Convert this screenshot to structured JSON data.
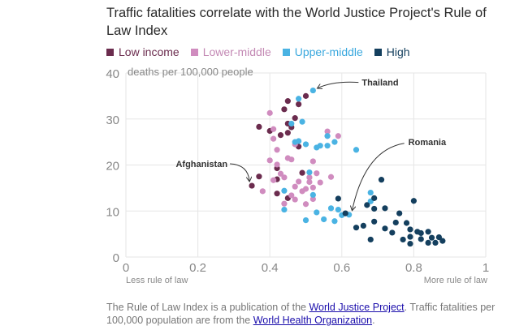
{
  "title": "Traffic fatalities correlate with the World Justice Project's Rule of Law Index",
  "legend": [
    {
      "label": "Low income",
      "color": "#6b2c4e",
      "text_color": "#6b2c4e"
    },
    {
      "label": "Lower-middle",
      "color": "#d08cbf",
      "text_color": "#c389b4"
    },
    {
      "label": "Upper-middle",
      "color": "#4ab3e3",
      "text_color": "#3aa8de"
    },
    {
      "label": "High",
      "color": "#143f5e",
      "text_color": "#143f5e"
    }
  ],
  "footer": {
    "pre": "The Rule of Law Index is a publication of the ",
    "link1": "World Justice Project",
    "mid": ". Traffic fatalities per 100,000 population are from the ",
    "link2": "World Health Organization",
    "post": "."
  },
  "chart_data": {
    "type": "scatter",
    "title": "Traffic fatalities correlate with the World Justice Project's Rule of Law Index",
    "ylabel": "deaths per 100,000 people",
    "xlabel_left": "Less rule of law",
    "xlabel_right": "More rule of law",
    "xlim": [
      0,
      1
    ],
    "ylim": [
      0,
      40
    ],
    "xticks": [
      "0",
      "0.2",
      "0.4",
      "0.6",
      "0.8",
      "1"
    ],
    "yticks": [
      "0",
      "10",
      "20",
      "30",
      "40"
    ],
    "annotations": [
      {
        "label": "Afghanistan",
        "x": 0.35,
        "y": 15.5
      },
      {
        "label": "Thailand",
        "x": 0.52,
        "y": 36.2
      },
      {
        "label": "Romania",
        "x": 0.62,
        "y": 9.2
      }
    ],
    "series": [
      {
        "name": "Low income",
        "color": "#6b2c4e",
        "points": [
          [
            0.35,
            15.5
          ],
          [
            0.37,
            17.5
          ],
          [
            0.37,
            28.3
          ],
          [
            0.4,
            27.4
          ],
          [
            0.42,
            13.8
          ],
          [
            0.42,
            16.9
          ],
          [
            0.42,
            19.3
          ],
          [
            0.43,
            26.5
          ],
          [
            0.44,
            32.1
          ],
          [
            0.45,
            29.0
          ],
          [
            0.45,
            27.0
          ],
          [
            0.45,
            12.8
          ],
          [
            0.45,
            33.9
          ],
          [
            0.46,
            28.2
          ],
          [
            0.47,
            30.2
          ],
          [
            0.48,
            33.2
          ],
          [
            0.48,
            24.0
          ],
          [
            0.49,
            18.3
          ],
          [
            0.5,
            35.0
          ]
        ]
      },
      {
        "name": "Lower-middle",
        "color": "#d08cbf",
        "points": [
          [
            0.38,
            14.3
          ],
          [
            0.4,
            31.3
          ],
          [
            0.4,
            21.0
          ],
          [
            0.41,
            27.8
          ],
          [
            0.41,
            16.7
          ],
          [
            0.41,
            25.7
          ],
          [
            0.42,
            23.3
          ],
          [
            0.42,
            20.1
          ],
          [
            0.43,
            18.1
          ],
          [
            0.44,
            17.3
          ],
          [
            0.44,
            11.6
          ],
          [
            0.45,
            21.5
          ],
          [
            0.46,
            21.2
          ],
          [
            0.46,
            13.4
          ],
          [
            0.47,
            24.5
          ],
          [
            0.47,
            15.3
          ],
          [
            0.47,
            12.5
          ],
          [
            0.48,
            16.4
          ],
          [
            0.49,
            14.3
          ],
          [
            0.5,
            11.5
          ],
          [
            0.5,
            14.8
          ],
          [
            0.51,
            17.3
          ],
          [
            0.51,
            16.3
          ],
          [
            0.52,
            15.1
          ],
          [
            0.52,
            12.6
          ],
          [
            0.52,
            20.8
          ],
          [
            0.53,
            18.2
          ],
          [
            0.54,
            16.2
          ],
          [
            0.56,
            26.3
          ],
          [
            0.56,
            27.3
          ],
          [
            0.57,
            17.4
          ],
          [
            0.59,
            26.3
          ]
        ]
      },
      {
        "name": "Upper-middle",
        "color": "#4ab3e3",
        "points": [
          [
            0.44,
            10.3
          ],
          [
            0.44,
            14.4
          ],
          [
            0.46,
            29.0
          ],
          [
            0.47,
            25.0
          ],
          [
            0.48,
            25.2
          ],
          [
            0.48,
            34.4
          ],
          [
            0.49,
            29.4
          ],
          [
            0.5,
            24.5
          ],
          [
            0.5,
            8.0
          ],
          [
            0.51,
            18.4
          ],
          [
            0.52,
            36.2
          ],
          [
            0.52,
            13.5
          ],
          [
            0.53,
            23.8
          ],
          [
            0.53,
            9.7
          ],
          [
            0.54,
            24.2
          ],
          [
            0.55,
            8.2
          ],
          [
            0.56,
            26.3
          ],
          [
            0.56,
            24.2
          ],
          [
            0.57,
            10.6
          ],
          [
            0.58,
            7.8
          ],
          [
            0.58,
            25.0
          ],
          [
            0.59,
            10.3
          ],
          [
            0.6,
            9.1
          ],
          [
            0.62,
            9.2
          ],
          [
            0.64,
            23.3
          ],
          [
            0.68,
            14.0
          ],
          [
            0.68,
            12.1
          ]
        ]
      },
      {
        "name": "High",
        "color": "#143f5e",
        "points": [
          [
            0.59,
            12.7
          ],
          [
            0.61,
            9.5
          ],
          [
            0.64,
            6.4
          ],
          [
            0.66,
            6.8
          ],
          [
            0.67,
            11.3
          ],
          [
            0.68,
            3.8
          ],
          [
            0.69,
            12.8
          ],
          [
            0.69,
            10.5
          ],
          [
            0.69,
            7.7
          ],
          [
            0.71,
            16.8
          ],
          [
            0.72,
            6.2
          ],
          [
            0.72,
            10.6
          ],
          [
            0.74,
            5.3
          ],
          [
            0.75,
            7.5
          ],
          [
            0.76,
            9.5
          ],
          [
            0.77,
            3.8
          ],
          [
            0.78,
            7.4
          ],
          [
            0.79,
            6.0
          ],
          [
            0.79,
            4.4
          ],
          [
            0.79,
            2.9
          ],
          [
            0.8,
            12.2
          ],
          [
            0.81,
            5.5
          ],
          [
            0.82,
            3.9
          ],
          [
            0.82,
            5.2
          ],
          [
            0.84,
            5.5
          ],
          [
            0.84,
            3.1
          ],
          [
            0.85,
            4.2
          ],
          [
            0.86,
            3.1
          ],
          [
            0.87,
            4.3
          ],
          [
            0.88,
            3.5
          ]
        ]
      }
    ]
  }
}
